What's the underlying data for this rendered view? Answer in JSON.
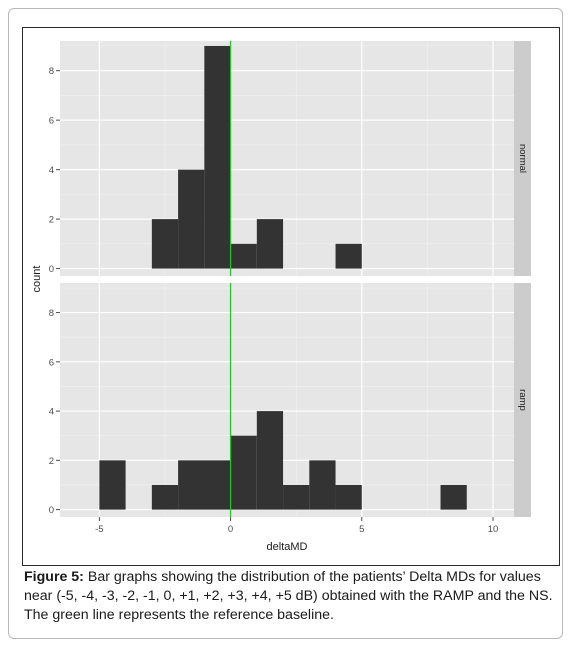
{
  "chart_data": {
    "type": "bar",
    "subtype": "faceted-histogram",
    "xlabel": "deltaMD",
    "ylabel": "count",
    "xlim": [
      -6.5,
      10.8
    ],
    "x_ticks": [
      -5,
      0,
      5,
      10
    ],
    "reference_line": {
      "x": 0,
      "color": "#00dd00"
    },
    "bin_width": 1,
    "bar_color": "#333333",
    "panel_background": "#e6e6e6",
    "strip_background": "#cccccc",
    "grid": true,
    "panels": [
      {
        "strip_label": "normal",
        "ylim": [
          -0.3,
          9.2
        ],
        "y_ticks": [
          0,
          2,
          4,
          6,
          8
        ],
        "bins": [
          {
            "x0": -3,
            "x1": -2,
            "count": 2
          },
          {
            "x0": -2,
            "x1": -1,
            "count": 4
          },
          {
            "x0": -1,
            "x1": 0,
            "count": 9
          },
          {
            "x0": 0,
            "x1": 1,
            "count": 1
          },
          {
            "x0": 1,
            "x1": 2,
            "count": 2
          },
          {
            "x0": 4,
            "x1": 5,
            "count": 1
          }
        ]
      },
      {
        "strip_label": "ramp",
        "ylim": [
          -0.3,
          9.2
        ],
        "y_ticks": [
          0,
          2,
          4,
          6,
          8
        ],
        "bins": [
          {
            "x0": -5,
            "x1": -4,
            "count": 2
          },
          {
            "x0": -3,
            "x1": -2,
            "count": 1
          },
          {
            "x0": -2,
            "x1": 0,
            "count": 2
          },
          {
            "x0": 0,
            "x1": 1,
            "count": 3
          },
          {
            "x0": 1,
            "x1": 2,
            "count": 4
          },
          {
            "x0": 2,
            "x1": 3,
            "count": 1
          },
          {
            "x0": 3,
            "x1": 4,
            "count": 2
          },
          {
            "x0": 4,
            "x1": 5,
            "count": 1
          },
          {
            "x0": 8,
            "x1": 9,
            "count": 1
          }
        ]
      }
    ]
  },
  "caption": {
    "label": "Figure 5:",
    "text": " Bar graphs showing the distribution of the patients’ Delta MDs for values near (-5, -4, -3, -2, -1, 0, +1, +2, +3, +4, +5 dB) obtained with the RAMP and the NS. The green line represents the reference baseline."
  }
}
